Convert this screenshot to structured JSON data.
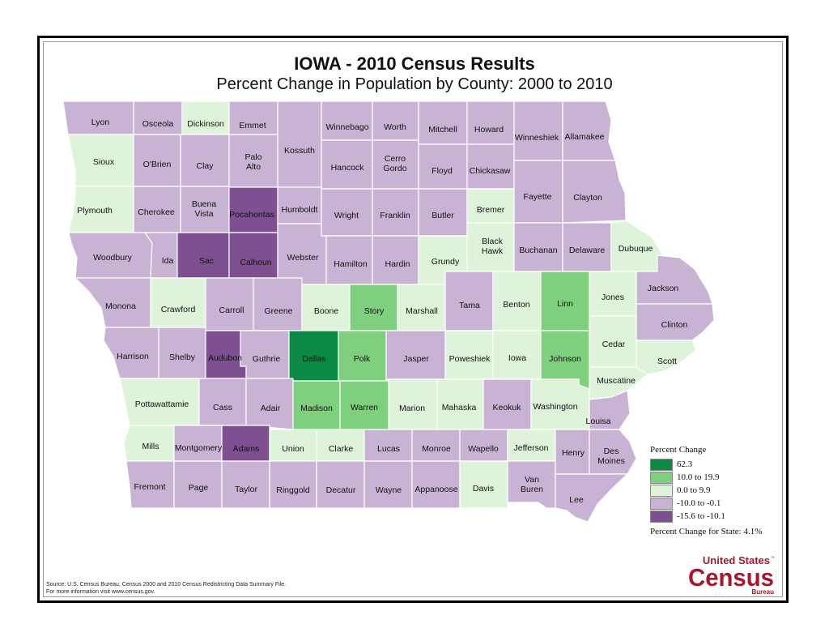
{
  "header": {
    "title": "IOWA - 2010 Census Results",
    "subtitle": "Percent Change in Population by County:  2000 to 2010"
  },
  "colors": {
    "c62": "#0b8a44",
    "c10": "#7ed07e",
    "c0": "#dff3da",
    "cm10": "#c8b3d4",
    "cm15": "#7e4f91",
    "border": "#ffffff"
  },
  "legend": {
    "title": "Percent Change",
    "items": [
      {
        "label": "62.3",
        "color": "#0b8a44"
      },
      {
        "label": "10.0 to 19.9",
        "color": "#7ed07e"
      },
      {
        "label": "0.0 to 9.9",
        "color": "#dff3da"
      },
      {
        "label": "-10.0 to -0.1",
        "color": "#c8b3d4"
      },
      {
        "label": "-15.6 to -10.1",
        "color": "#7e4f91"
      }
    ],
    "state_change": "Percent Change for State:  4.1%"
  },
  "source": {
    "line1": "Source:  U.S. Census Bureau, Census 2000 and 2010 Census Redistricting Data Summary File.",
    "line2": "For more information visit www.census.gov."
  },
  "logo": {
    "line1": "United States",
    "tm": "™",
    "line2": "Census",
    "line3": "Bureau"
  },
  "counties": [
    {
      "name": "Lyon",
      "cls": "cm10"
    },
    {
      "name": "Osceola",
      "cls": "cm10"
    },
    {
      "name": "Dickinson",
      "cls": "c0"
    },
    {
      "name": "Emmet",
      "cls": "cm10"
    },
    {
      "name": "Kossuth",
      "cls": "cm10"
    },
    {
      "name": "Winnebago",
      "cls": "cm10"
    },
    {
      "name": "Worth",
      "cls": "cm10"
    },
    {
      "name": "Mitchell",
      "cls": "cm10"
    },
    {
      "name": "Howard",
      "cls": "cm10"
    },
    {
      "name": "Winneshiek",
      "cls": "cm10"
    },
    {
      "name": "Allamakee",
      "cls": "cm10"
    },
    {
      "name": "Sioux",
      "cls": "c0"
    },
    {
      "name": "O'Brien",
      "cls": "cm10"
    },
    {
      "name": "Clay",
      "cls": "cm10"
    },
    {
      "name": "Palo Alto",
      "cls": "cm10"
    },
    {
      "name": "Hancock",
      "cls": "cm10"
    },
    {
      "name": "Cerro Gordo",
      "cls": "cm10"
    },
    {
      "name": "Floyd",
      "cls": "cm10"
    },
    {
      "name": "Chickasaw",
      "cls": "cm10"
    },
    {
      "name": "Fayette",
      "cls": "cm10"
    },
    {
      "name": "Clayton",
      "cls": "cm10"
    },
    {
      "name": "Plymouth",
      "cls": "c0"
    },
    {
      "name": "Cherokee",
      "cls": "cm10"
    },
    {
      "name": "Buena Vista",
      "cls": "cm10"
    },
    {
      "name": "Pocahontas",
      "cls": "cm15"
    },
    {
      "name": "Humboldt",
      "cls": "cm10"
    },
    {
      "name": "Wright",
      "cls": "cm10"
    },
    {
      "name": "Franklin",
      "cls": "cm10"
    },
    {
      "name": "Butler",
      "cls": "cm10"
    },
    {
      "name": "Bremer",
      "cls": "c0"
    },
    {
      "name": "Black Hawk",
      "cls": "c0"
    },
    {
      "name": "Buchanan",
      "cls": "cm10"
    },
    {
      "name": "Delaware",
      "cls": "cm10"
    },
    {
      "name": "Dubuque",
      "cls": "c0"
    },
    {
      "name": "Woodbury",
      "cls": "cm10"
    },
    {
      "name": "Ida",
      "cls": "cm10"
    },
    {
      "name": "Sac",
      "cls": "cm15"
    },
    {
      "name": "Calhoun",
      "cls": "cm15"
    },
    {
      "name": "Webster",
      "cls": "cm10"
    },
    {
      "name": "Hamilton",
      "cls": "cm10"
    },
    {
      "name": "Hardin",
      "cls": "cm10"
    },
    {
      "name": "Grundy",
      "cls": "c0"
    },
    {
      "name": "Monona",
      "cls": "cm10"
    },
    {
      "name": "Crawford",
      "cls": "c0"
    },
    {
      "name": "Carroll",
      "cls": "cm10"
    },
    {
      "name": "Greene",
      "cls": "cm10"
    },
    {
      "name": "Boone",
      "cls": "c0"
    },
    {
      "name": "Story",
      "cls": "c10"
    },
    {
      "name": "Marshall",
      "cls": "c0"
    },
    {
      "name": "Tama",
      "cls": "cm10"
    },
    {
      "name": "Benton",
      "cls": "c0"
    },
    {
      "name": "Linn",
      "cls": "c10"
    },
    {
      "name": "Jones",
      "cls": "c0"
    },
    {
      "name": "Jackson",
      "cls": "cm10"
    },
    {
      "name": "Clinton",
      "cls": "cm10"
    },
    {
      "name": "Harrison",
      "cls": "cm10"
    },
    {
      "name": "Shelby",
      "cls": "cm10"
    },
    {
      "name": "Audubon",
      "cls": "cm15"
    },
    {
      "name": "Guthrie",
      "cls": "cm10"
    },
    {
      "name": "Dallas",
      "cls": "c62"
    },
    {
      "name": "Polk",
      "cls": "c10"
    },
    {
      "name": "Jasper",
      "cls": "cm10"
    },
    {
      "name": "Poweshiek",
      "cls": "c0"
    },
    {
      "name": "Iowa",
      "cls": "c0"
    },
    {
      "name": "Johnson",
      "cls": "c10"
    },
    {
      "name": "Cedar",
      "cls": "c0"
    },
    {
      "name": "Scott",
      "cls": "c0"
    },
    {
      "name": "Muscatine",
      "cls": "c0"
    },
    {
      "name": "Pottawattamie",
      "cls": "c0"
    },
    {
      "name": "Cass",
      "cls": "cm10"
    },
    {
      "name": "Adair",
      "cls": "cm10"
    },
    {
      "name": "Madison",
      "cls": "c10"
    },
    {
      "name": "Warren",
      "cls": "c10"
    },
    {
      "name": "Marion",
      "cls": "c0"
    },
    {
      "name": "Mahaska",
      "cls": "c0"
    },
    {
      "name": "Keokuk",
      "cls": "cm10"
    },
    {
      "name": "Washington",
      "cls": "c0"
    },
    {
      "name": "Louisa",
      "cls": "cm10"
    },
    {
      "name": "Mills",
      "cls": "c0"
    },
    {
      "name": "Montgomery",
      "cls": "cm10"
    },
    {
      "name": "Adams",
      "cls": "cm15"
    },
    {
      "name": "Union",
      "cls": "c0"
    },
    {
      "name": "Clarke",
      "cls": "c0"
    },
    {
      "name": "Lucas",
      "cls": "cm10"
    },
    {
      "name": "Monroe",
      "cls": "cm10"
    },
    {
      "name": "Wapello",
      "cls": "cm10"
    },
    {
      "name": "Jefferson",
      "cls": "c0"
    },
    {
      "name": "Henry",
      "cls": "cm10"
    },
    {
      "name": "Des Moines",
      "cls": "cm10"
    },
    {
      "name": "Fremont",
      "cls": "cm10"
    },
    {
      "name": "Page",
      "cls": "cm10"
    },
    {
      "name": "Taylor",
      "cls": "cm10"
    },
    {
      "name": "Ringgold",
      "cls": "cm10"
    },
    {
      "name": "Decatur",
      "cls": "cm10"
    },
    {
      "name": "Wayne",
      "cls": "cm10"
    },
    {
      "name": "Appanoose",
      "cls": "cm10"
    },
    {
      "name": "Davis",
      "cls": "c0"
    },
    {
      "name": "Van Buren",
      "cls": "cm10"
    },
    {
      "name": "Lee",
      "cls": "cm10"
    }
  ]
}
